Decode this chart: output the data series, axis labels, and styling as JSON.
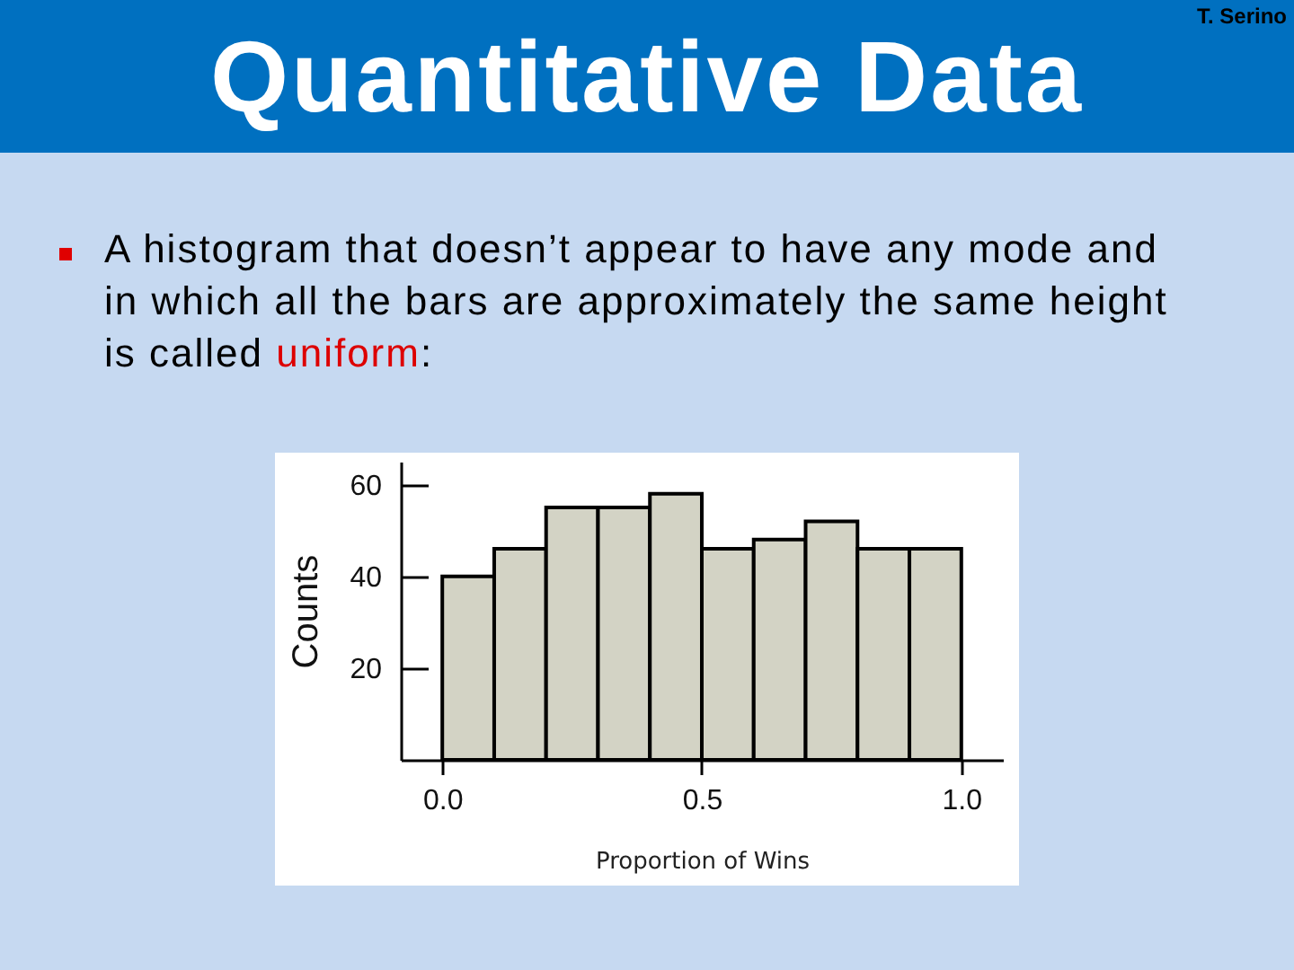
{
  "chart_data": {
    "type": "histogram",
    "title": "Quantitative Data",
    "annotations": [
      "A histogram that doesn’t appear to have any mode and in which all the bars are approximately the same height is called uniform:",
      "T. Serino"
    ],
    "xlabel": "Proportion of Wins",
    "ylabel": "Counts",
    "bins": [
      0,
      0.1,
      0.2,
      0.3,
      0.4,
      0.5,
      0.6,
      0.7,
      0.8,
      0.9,
      1.0
    ],
    "values": [
      40,
      46,
      55,
      55,
      58,
      46,
      48,
      52,
      46,
      46
    ],
    "color": "#d3d3c5",
    "xlim": [
      -0.08,
      1.08
    ],
    "ylim": [
      0,
      65
    ],
    "xticks": [
      {
        "value": 0,
        "label": "0.0"
      },
      {
        "value": 0.5,
        "label": "0.5"
      },
      {
        "value": 1,
        "label": "1.0"
      }
    ],
    "yticks": [
      20,
      40,
      60
    ]
  }
}
